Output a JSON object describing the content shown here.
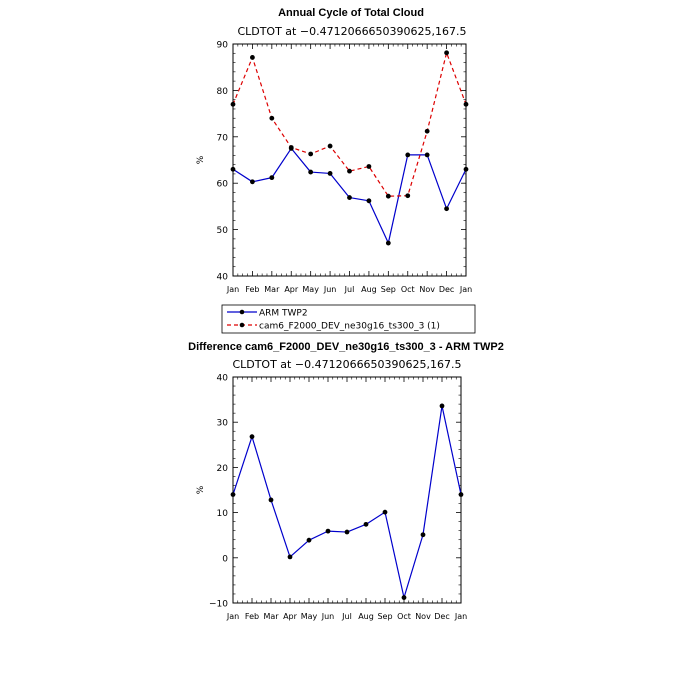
{
  "chart_data": [
    {
      "type": "line",
      "title": "Annual Cycle of Total Cloud",
      "subtitle": "CLDTOT at −0.4712066650390625,167.5",
      "ylabel": "%",
      "ylim": [
        40,
        90
      ],
      "yticks": [
        "40",
        "50",
        "60",
        "70",
        "80",
        "90"
      ],
      "categories": [
        "Jan",
        "Feb",
        "Mar",
        "Apr",
        "May",
        "Jun",
        "Jul",
        "Aug",
        "Sep",
        "Oct",
        "Nov",
        "Dec",
        "Jan"
      ],
      "series": [
        {
          "name": "ARM TWP2",
          "color": "#0000cc",
          "dash": "solid",
          "values": [
            63.0,
            60.3,
            61.2,
            67.5,
            62.4,
            62.1,
            56.9,
            56.2,
            47.1,
            66.1,
            66.1,
            54.5,
            63.0
          ]
        },
        {
          "name": "cam6_F2000_DEV_ne30g16_ts300_3 (1)",
          "color": "#dd0000",
          "dash": "dashed",
          "values": [
            77.0,
            87.1,
            74.0,
            67.7,
            66.3,
            68.0,
            62.6,
            63.6,
            57.2,
            57.3,
            71.2,
            88.1,
            77.0
          ]
        }
      ],
      "legend_position": "bottom"
    },
    {
      "type": "line",
      "title": "Difference cam6_F2000_DEV_ne30g16_ts300_3 - ARM TWP2",
      "subtitle": "CLDTOT at −0.4712066650390625,167.5",
      "ylabel": "%",
      "ylim": [
        -10,
        40
      ],
      "yticks": [
        "−10",
        "0",
        "10",
        "20",
        "30",
        "40"
      ],
      "categories": [
        "Jan",
        "Feb",
        "Mar",
        "Apr",
        "May",
        "Jun",
        "Jul",
        "Aug",
        "Sep",
        "Oct",
        "Nov",
        "Dec",
        "Jan"
      ],
      "series": [
        {
          "name": "Difference",
          "color": "#0000cc",
          "dash": "solid",
          "values": [
            14.0,
            26.8,
            12.8,
            0.2,
            3.9,
            5.9,
            5.7,
            7.4,
            10.1,
            -8.8,
            5.1,
            33.6,
            14.0
          ]
        }
      ]
    }
  ]
}
